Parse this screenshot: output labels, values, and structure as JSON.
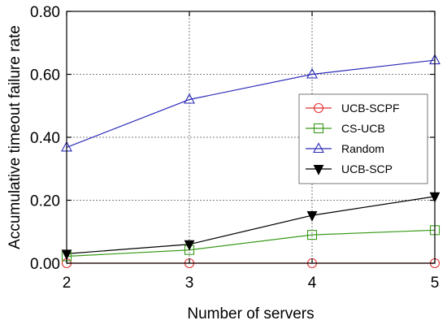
{
  "chart_data": {
    "type": "line",
    "xlabel": "Number of servers",
    "ylabel": "Accumulative timeout failure rate",
    "x": [
      2,
      3,
      4,
      5
    ],
    "xlim": [
      2,
      5
    ],
    "ylim": [
      0,
      0.8
    ],
    "yticks": [
      "0.00",
      "0.20",
      "0.40",
      "0.60",
      "0.80"
    ],
    "xticks": [
      "2",
      "3",
      "4",
      "5"
    ],
    "grid": true,
    "legend_position": "right",
    "series": [
      {
        "name": "UCB-SCPF",
        "values": [
          0.0,
          0.0,
          0.0,
          0.0
        ],
        "color": "#e03030",
        "marker": "circle"
      },
      {
        "name": "CS-UCB",
        "values": [
          0.022,
          0.042,
          0.09,
          0.105
        ],
        "color": "#3a9a1a",
        "marker": "square"
      },
      {
        "name": "Random",
        "values": [
          0.368,
          0.52,
          0.6,
          0.645
        ],
        "color": "#2a2ab8",
        "marker": "triangle-up"
      },
      {
        "name": "UCB-SCP",
        "values": [
          0.03,
          0.06,
          0.152,
          0.212
        ],
        "color": "#000000",
        "marker": "triangle-down-filled"
      }
    ]
  }
}
